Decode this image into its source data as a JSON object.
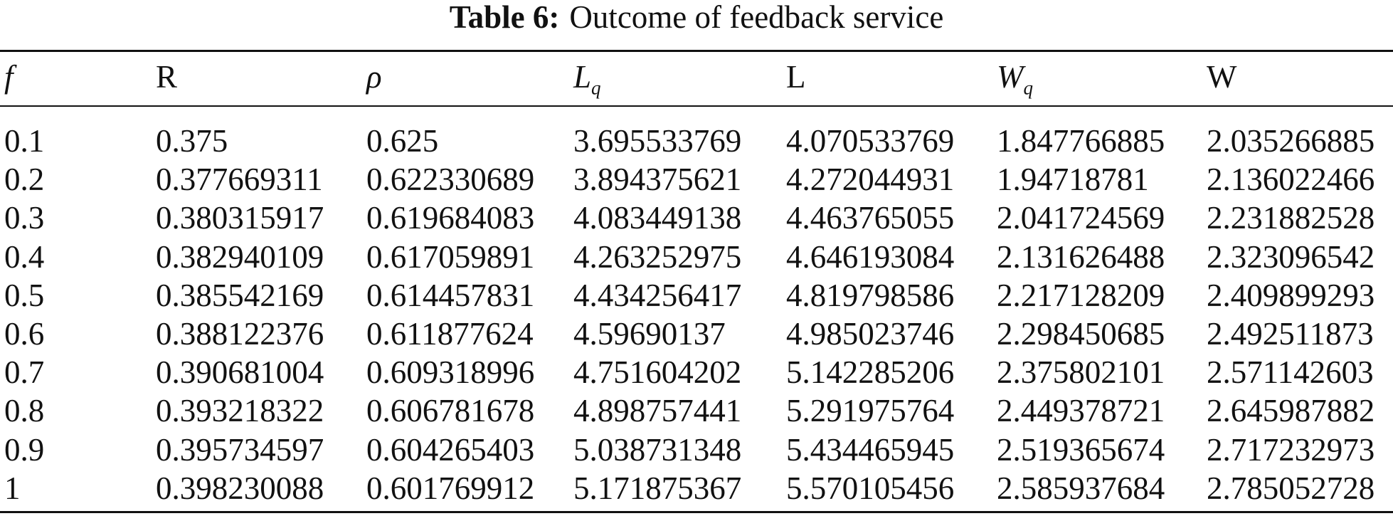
{
  "caption": {
    "label": "Table 6:",
    "text": "Outcome of feedback service"
  },
  "table": {
    "headers": [
      {
        "base": "f"
      },
      {
        "base": "R"
      },
      {
        "base": "ρ"
      },
      {
        "base": "L",
        "sub": "q"
      },
      {
        "base": "L"
      },
      {
        "base": "W",
        "sub": "q"
      },
      {
        "base": "W"
      }
    ],
    "rows": [
      [
        "0.1",
        "0.375",
        "0.625",
        "3.695533769",
        "4.070533769",
        "1.847766885",
        "2.035266885"
      ],
      [
        "0.2",
        "0.377669311",
        "0.622330689",
        "3.894375621",
        "4.272044931",
        "1.94718781",
        "2.136022466"
      ],
      [
        "0.3",
        "0.380315917",
        "0.619684083",
        "4.083449138",
        "4.463765055",
        "2.041724569",
        "2.231882528"
      ],
      [
        "0.4",
        "0.382940109",
        "0.617059891",
        "4.263252975",
        "4.646193084",
        "2.131626488",
        "2.323096542"
      ],
      [
        "0.5",
        "0.385542169",
        "0.614457831",
        "4.434256417",
        "4.819798586",
        "2.217128209",
        "2.409899293"
      ],
      [
        "0.6",
        "0.388122376",
        "0.611877624",
        "4.59690137",
        "4.985023746",
        "2.298450685",
        "2.492511873"
      ],
      [
        "0.7",
        "0.390681004",
        "0.609318996",
        "4.751604202",
        "5.142285206",
        "2.375802101",
        "2.571142603"
      ],
      [
        "0.8",
        "0.393218322",
        "0.606781678",
        "4.898757441",
        "5.291975764",
        "2.449378721",
        "2.645987882"
      ],
      [
        "0.9",
        "0.395734597",
        "0.604265403",
        "5.038731348",
        "5.434465945",
        "2.519365674",
        "2.717232973"
      ],
      [
        "1",
        "0.398230088",
        "0.601769912",
        "5.171875367",
        "5.570105456",
        "2.585937684",
        "2.785052728"
      ]
    ]
  }
}
